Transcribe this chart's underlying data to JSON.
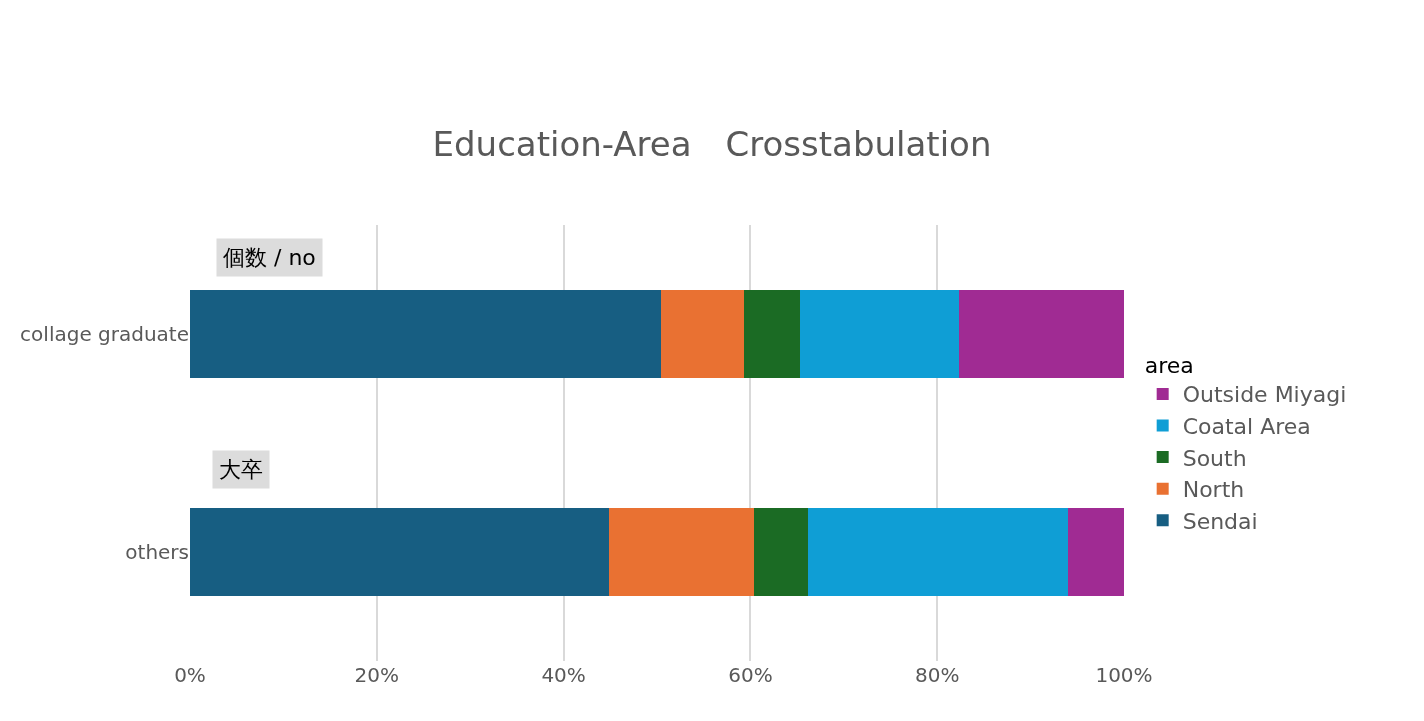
{
  "chart_data": {
    "type": "bar",
    "title": "Education-Area　Crosstabulation",
    "orientation": "horizontal",
    "stacked": true,
    "categories": [
      "collage graduate",
      "others"
    ],
    "series": [
      {
        "name": "Sendai",
        "color": "#175e82",
        "values": [
          50.4,
          44.9
        ]
      },
      {
        "name": "North",
        "color": "#e97132",
        "values": [
          8.9,
          15.5
        ]
      },
      {
        "name": "South",
        "color": "#1b6b24",
        "values": [
          6.0,
          5.8
        ]
      },
      {
        "name": "Coatal Area",
        "color": "#0f9ed5",
        "values": [
          17.0,
          27.8
        ]
      },
      {
        "name": "Outside Miyagi",
        "color": "#a02b93",
        "values": [
          17.7,
          6.0
        ]
      }
    ],
    "xlim": [
      0,
      100
    ],
    "xticks": [
      {
        "value": 0,
        "label": "0%"
      },
      {
        "value": 20,
        "label": "20%"
      },
      {
        "value": 40,
        "label": "40%"
      },
      {
        "value": 60,
        "label": "60%"
      },
      {
        "value": 80,
        "label": "80%"
      },
      {
        "value": 100,
        "label": "100%"
      }
    ],
    "grid": "x",
    "legend": "right",
    "legend_title": "area",
    "annotations": [
      "個数 / no",
      "大卒"
    ]
  }
}
